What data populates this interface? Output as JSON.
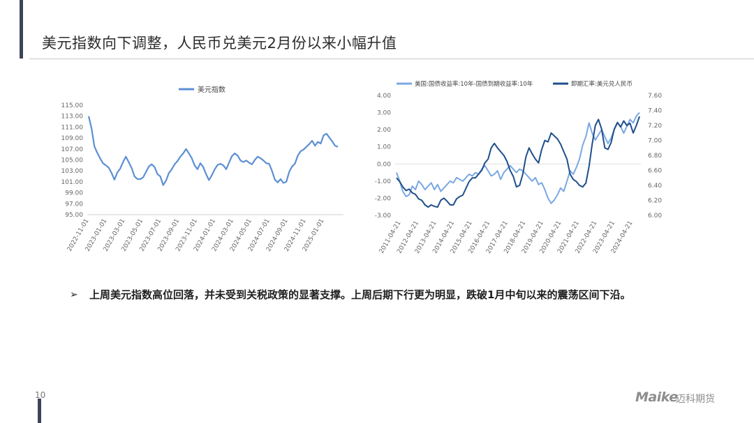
{
  "slide": {
    "title": "美元指数向下调整，人民币兑美元2月份以来小幅升值",
    "page_number": "10",
    "bullet_marker": "➢",
    "bullet_text": "上周美元指数高位回落，并未受到关税政策的显著支撑。上周后期下行更为明显，跌破1月中旬以来的震荡区间下沿。",
    "logo_text": "Maike",
    "logo_cn": "迈科期货"
  },
  "chart_data": [
    {
      "type": "line",
      "title": "",
      "legend": [
        "美元指数"
      ],
      "legend_position": "top",
      "y_ticks": [
        "115.00",
        "113.00",
        "111.00",
        "109.00",
        "107.00",
        "105.00",
        "103.00",
        "101.00",
        "99.00",
        "97.00",
        "95.00"
      ],
      "ylim": [
        95,
        115
      ],
      "x_ticks": [
        "2022-11-01",
        "2023-01-01",
        "2023-03-01",
        "2023-05-01",
        "2023-07-01",
        "2023-09-01",
        "2023-11-01",
        "2024-01-01",
        "2024-03-01",
        "2024-05-01",
        "2024-07-01",
        "2024-09-01",
        "2024-11-01",
        "2025-01-01"
      ],
      "series": [
        {
          "name": "美元指数",
          "color": "#5b8fd4",
          "values": [
            113.0,
            110.8,
            107.5,
            106.3,
            105.3,
            104.4,
            104.0,
            103.6,
            102.6,
            101.4,
            102.7,
            103.4,
            104.6,
            105.6,
            104.6,
            103.5,
            102.0,
            101.5,
            101.5,
            101.8,
            102.8,
            103.8,
            104.2,
            103.7,
            102.4,
            102.0,
            100.4,
            101.2,
            102.6,
            103.3,
            104.2,
            104.8,
            105.6,
            106.2,
            107.0,
            106.2,
            105.3,
            104.0,
            103.3,
            104.4,
            103.7,
            102.4,
            101.3,
            102.2,
            103.3,
            104.1,
            104.3,
            104.0,
            103.3,
            104.5,
            105.7,
            106.2,
            105.8,
            104.9,
            104.6,
            104.9,
            104.5,
            104.2,
            105.0,
            105.6,
            105.3,
            104.9,
            104.4,
            104.3,
            103.0,
            101.4,
            100.9,
            101.5,
            100.8,
            101.0,
            102.8,
            103.8,
            104.3,
            105.8,
            106.6,
            106.9,
            107.4,
            107.9,
            108.5,
            107.6,
            108.3,
            108.0,
            109.5,
            109.8,
            109.1,
            108.4,
            107.6,
            107.4
          ]
        }
      ]
    },
    {
      "type": "line",
      "title": "",
      "legend": [
        "美国:国债收益率:10年-国债到期收益率:10年",
        "即期汇率:美元兑人民币"
      ],
      "legend_position": "top",
      "y_ticks_left": [
        "4.00",
        "3.00",
        "2.00",
        "1.00",
        "0.00",
        "-1.00",
        "-2.00",
        "-3.00"
      ],
      "ylim_left": [
        -3,
        4
      ],
      "y_ticks_right": [
        "7.60",
        "7.40",
        "7.20",
        "7.00",
        "6.80",
        "6.60",
        "6.40",
        "6.20",
        "6.00"
      ],
      "ylim_right": [
        6.0,
        7.6
      ],
      "x_ticks": [
        "2011-04-21",
        "2012-04-21",
        "2013-04-21",
        "2014-04-21",
        "2015-04-21",
        "2016-04-21",
        "2017-04-21",
        "2018-04-21",
        "2019-04-21",
        "2020-04-21",
        "2021-04-21",
        "2022-04-21",
        "2023-04-21",
        "2024-04-21"
      ],
      "series": [
        {
          "name": "美国:国债收益率:10年-国债到期收益率:10年",
          "color": "#7aa8e2",
          "axis": "left",
          "values": [
            -0.5,
            -1.0,
            -1.6,
            -1.9,
            -1.8,
            -1.3,
            -1.5,
            -1.0,
            -1.2,
            -1.5,
            -1.3,
            -1.1,
            -1.5,
            -1.2,
            -1.6,
            -1.4,
            -1.2,
            -1.0,
            -1.1,
            -0.8,
            -0.9,
            -1.0,
            -0.8,
            -0.6,
            -0.7,
            -0.5,
            -0.6,
            -0.3,
            -0.1,
            -0.4,
            -0.7,
            -0.6,
            -0.4,
            -0.9,
            -0.5,
            -0.3,
            -0.1,
            -0.3,
            -0.5,
            -0.3,
            -0.4,
            -0.6,
            -0.8,
            -1.0,
            -0.8,
            -1.2,
            -1.1,
            -1.5,
            -2.0,
            -2.3,
            -2.1,
            -1.8,
            -1.4,
            -1.6,
            -1.0,
            -0.4,
            -0.6,
            -0.2,
            0.3,
            1.1,
            1.6,
            2.4,
            1.8,
            1.4,
            1.7,
            2.0,
            1.6,
            1.2,
            1.5,
            2.0,
            2.4,
            2.2,
            1.8,
            2.2,
            2.6,
            2.4,
            2.8,
            3.0
          ]
        },
        {
          "name": "即期汇率:美元兑人民币",
          "color": "#1f4f8a",
          "axis": "right",
          "values": [
            6.5,
            6.45,
            6.38,
            6.33,
            6.35,
            6.3,
            6.28,
            6.22,
            6.2,
            6.14,
            6.11,
            6.14,
            6.12,
            6.11,
            6.2,
            6.23,
            6.19,
            6.14,
            6.14,
            6.22,
            6.25,
            6.27,
            6.36,
            6.45,
            6.5,
            6.5,
            6.55,
            6.6,
            6.7,
            6.75,
            6.9,
            6.96,
            6.9,
            6.85,
            6.8,
            6.72,
            6.6,
            6.52,
            6.38,
            6.4,
            6.55,
            6.78,
            6.9,
            6.82,
            6.75,
            6.7,
            6.88,
            7.0,
            6.98,
            7.1,
            7.06,
            7.02,
            6.95,
            6.85,
            6.75,
            6.55,
            6.48,
            6.45,
            6.4,
            6.38,
            6.43,
            6.65,
            6.95,
            7.2,
            7.28,
            7.15,
            6.9,
            6.88,
            6.97,
            7.15,
            7.24,
            7.18,
            7.26,
            7.2,
            7.23,
            7.1,
            7.2,
            7.32
          ]
        }
      ]
    }
  ]
}
